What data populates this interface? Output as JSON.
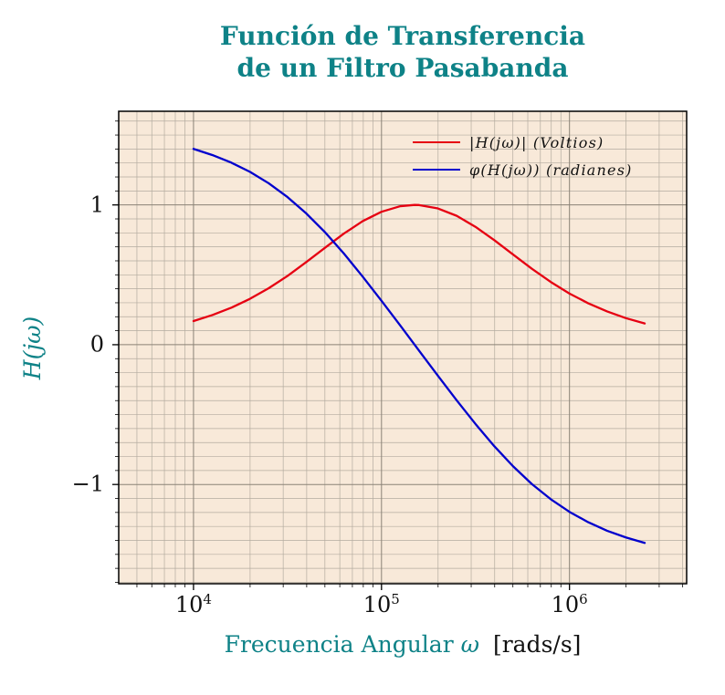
{
  "title": {
    "line1": "Función de Transferencia",
    "line2": "de un Filtro Pasabanda"
  },
  "colors": {
    "accent_teal": "#0e8287",
    "magnitude_red": "#e60012",
    "phase_blue": "#0000cd",
    "plot_background": "#f8e9d9",
    "grid_minor": "#b3ab9f",
    "grid_major": "#8a8276",
    "frame_black": "#000000"
  },
  "x_axis": {
    "label_main": "Frecuencia Angular",
    "label_symbol": "ω",
    "label_unit": "[rads/s]",
    "scale": "log",
    "major_tick_exponents": [
      4,
      5,
      6
    ]
  },
  "y_axis": {
    "label": "H(jω)",
    "major_ticks": [
      -1,
      0,
      1
    ],
    "minor_step": 0.1
  },
  "legend": [
    {
      "label": "|H(jω)| (Voltios)",
      "series_index": 0
    },
    {
      "label": "φ(H(jω)) (radianes)",
      "series_index": 1
    }
  ],
  "chart_data": {
    "type": "line",
    "title": "Función de Transferencia de un Filtro Pasabanda",
    "xlabel": "Frecuencia Angular ω [rads/s]",
    "ylabel": "H(jω)",
    "x_scale": "log",
    "xlim": [
      4000,
      4200000
    ],
    "ylim": [
      -1.71,
      1.67
    ],
    "grid": "on",
    "legend_position": "upper right",
    "x": [
      10000,
      12590,
      15850,
      19950,
      25120,
      31620,
      39810,
      50120,
      63100,
      79430,
      100000,
      125900,
      150000,
      158500,
      199500,
      251200,
      316200,
      398100,
      501200,
      631000,
      794300,
      1000000,
      1259000,
      1585000,
      1995000,
      2512000
    ],
    "series": [
      {
        "name": "|H(jω)| (Voltios)",
        "color": "#e60012",
        "values": [
          0.169,
          0.212,
          0.264,
          0.328,
          0.404,
          0.492,
          0.591,
          0.694,
          0.795,
          0.884,
          0.951,
          0.991,
          1.0,
          0.999,
          0.975,
          0.922,
          0.843,
          0.748,
          0.645,
          0.543,
          0.449,
          0.366,
          0.296,
          0.238,
          0.19,
          0.152
        ]
      },
      {
        "name": "φ(H(jω)) (radianes)",
        "color": "#0000cd",
        "values": [
          1.401,
          1.357,
          1.303,
          1.237,
          1.155,
          1.056,
          0.939,
          0.804,
          0.652,
          0.487,
          0.314,
          0.137,
          0.0,
          -0.043,
          -0.222,
          -0.398,
          -0.567,
          -0.726,
          -0.87,
          -0.997,
          -1.105,
          -1.196,
          -1.27,
          -1.331,
          -1.379,
          -1.418
        ]
      }
    ]
  }
}
